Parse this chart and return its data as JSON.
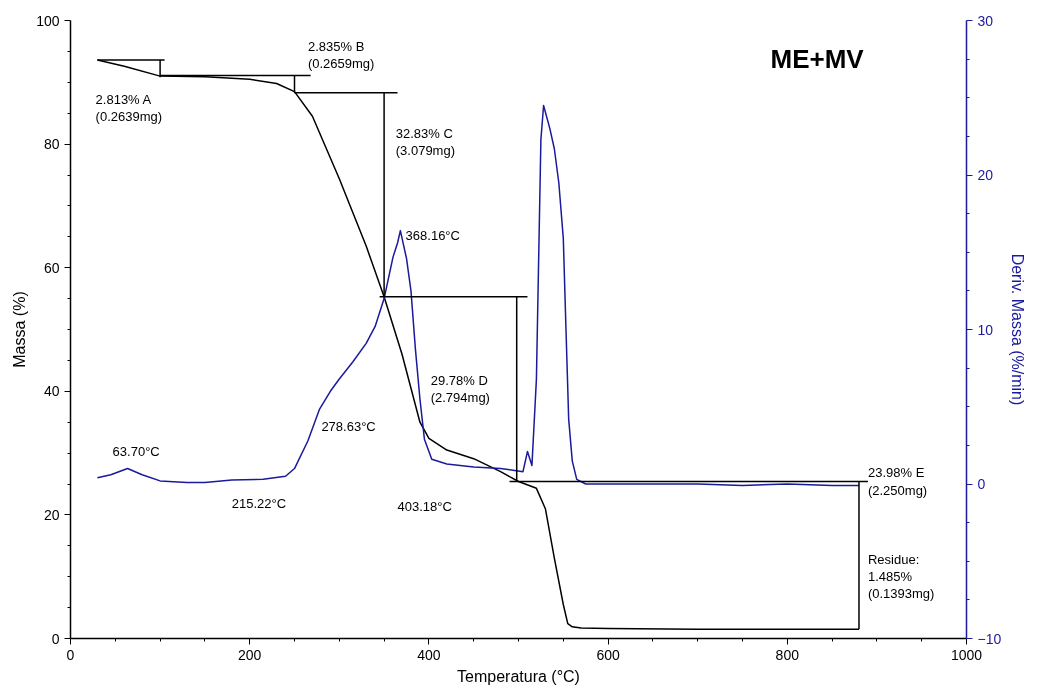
{
  "chart_data": {
    "type": "line",
    "title": "ME+MV",
    "xlabel": "Temperatura (°C)",
    "ylabel": "Massa (%)",
    "y2label": "Deriv. Massa (%/min)",
    "xlim": [
      0,
      1000
    ],
    "xticks": [
      0,
      200,
      400,
      600,
      800,
      1000
    ],
    "ylim": [
      0,
      100
    ],
    "yticks": [
      0,
      20,
      40,
      60,
      80,
      100
    ],
    "y2lim": [
      -10,
      30
    ],
    "y2ticks": [
      -10,
      0,
      10,
      20,
      30
    ],
    "grid": false,
    "line_style": "solid",
    "marker": "none",
    "series": [
      {
        "color": "#000000",
        "x": [
          30,
          60,
          100,
          150,
          200,
          230,
          250,
          270,
          300,
          330,
          350,
          370,
          380,
          390,
          400,
          420,
          450,
          480,
          500,
          520,
          530,
          540,
          550,
          555,
          560,
          570,
          600,
          700,
          800,
          880
        ],
        "values": [
          93.6,
          92.6,
          91.0,
          90.9,
          90.5,
          89.8,
          88.5,
          84.5,
          74.4,
          63.5,
          55.3,
          46.0,
          40.5,
          35.0,
          32.4,
          30.5,
          29.1,
          27.0,
          25.4,
          24.3,
          21.0,
          13.0,
          5.5,
          2.4,
          1.9,
          1.7,
          1.6,
          1.5,
          1.5,
          1.5
        ]
      },
      {
        "color": "#1a1a9c",
        "axis": "y2",
        "x": [
          30,
          45,
          63.7,
          80,
          100,
          130,
          150,
          180,
          215,
          240,
          250,
          265,
          278,
          290,
          300,
          315,
          330,
          340,
          350,
          360,
          365,
          368.16,
          375,
          380,
          385,
          390,
          395,
          403.18,
          420,
          450,
          480,
          505,
          510,
          515,
          520,
          525,
          528,
          535,
          540,
          545,
          550,
          553,
          556,
          560,
          565,
          575,
          600,
          650,
          700,
          750,
          800,
          850,
          880
        ],
        "values": [
          0.4,
          0.6,
          1.0,
          0.6,
          0.2,
          0.1,
          0.1,
          0.26,
          0.3,
          0.5,
          1.0,
          2.8,
          4.85,
          6.0,
          6.8,
          7.9,
          9.1,
          10.2,
          12.0,
          14.7,
          15.6,
          16.4,
          14.6,
          12.5,
          8.7,
          5.5,
          2.9,
          1.6,
          1.3,
          1.1,
          1.0,
          0.8,
          2.1,
          1.2,
          6.8,
          22.3,
          24.5,
          23.0,
          21.7,
          19.5,
          15.9,
          10.0,
          4.2,
          1.5,
          0.3,
          0.0,
          0.0,
          0.0,
          0.0,
          -0.1,
          0.0,
          -0.1,
          -0.1
        ]
      },
      {
        "color": "#000000",
        "x": [
          30,
          105,
          null,
          100,
          100,
          null,
          100,
          268,
          null,
          250,
          250,
          null,
          250,
          365,
          null,
          350,
          350,
          null,
          345,
          510,
          null,
          498,
          498,
          null,
          490,
          890,
          null,
          880,
          880
        ],
        "values": [
          93.6,
          93.6,
          null,
          93.6,
          90.8,
          null,
          91.1,
          91.1,
          null,
          91.1,
          88.3,
          null,
          88.3,
          88.3,
          null,
          88.3,
          55.3,
          null,
          55.3,
          55.3,
          null,
          55.3,
          25.4,
          null,
          25.4,
          25.4,
          null,
          25.4,
          1.5
        ]
      }
    ],
    "annotations": [
      "2.813% A\n(0.2639mg)",
      "2.835% B\n(0.2659mg)",
      "32.83% C\n(3.079mg)",
      "368.16°C",
      "63.70°C",
      "215.22°C",
      "278.63°C",
      "403.18°C",
      "29.78% D\n(2.794mg)",
      "23.98% E\n(2.250mg)",
      "Residue:\n1.485%\n(0.1393mg)"
    ]
  }
}
